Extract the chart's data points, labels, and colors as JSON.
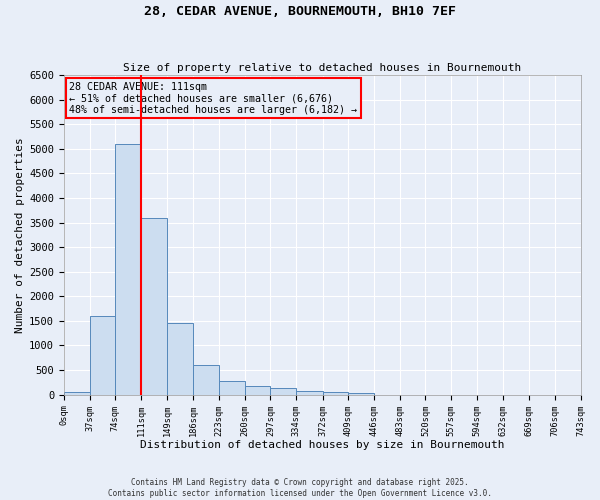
{
  "title_line1": "28, CEDAR AVENUE, BOURNEMOUTH, BH10 7EF",
  "title_line2": "Size of property relative to detached houses in Bournemouth",
  "xlabel": "Distribution of detached houses by size in Bournemouth",
  "ylabel": "Number of detached properties",
  "property_size": 111,
  "annotation_title": "28 CEDAR AVENUE: 111sqm",
  "annotation_line2": "← 51% of detached houses are smaller (6,676)",
  "annotation_line3": "48% of semi-detached houses are larger (6,182) →",
  "footer_line1": "Contains HM Land Registry data © Crown copyright and database right 2025.",
  "footer_line2": "Contains public sector information licensed under the Open Government Licence v3.0.",
  "bar_color": "#ccddf0",
  "bar_edge_color": "#5588bb",
  "vline_color": "red",
  "background_color": "#e8eef8",
  "grid_color": "#ffffff",
  "ylim_max": 6500,
  "bin_edges": [
    0,
    37,
    74,
    111,
    149,
    186,
    223,
    260,
    297,
    334,
    372,
    409,
    446,
    483,
    520,
    557,
    594,
    632,
    669,
    706,
    743
  ],
  "bar_heights": [
    50,
    1600,
    5100,
    3600,
    1450,
    600,
    280,
    175,
    130,
    80,
    50,
    30,
    0,
    0,
    0,
    0,
    0,
    0,
    0,
    0
  ],
  "yticks": [
    0,
    500,
    1000,
    1500,
    2000,
    2500,
    3000,
    3500,
    4000,
    4500,
    5000,
    5500,
    6000,
    6500
  ],
  "tick_labels": [
    "0sqm",
    "37sqm",
    "74sqm",
    "111sqm",
    "149sqm",
    "186sqm",
    "223sqm",
    "260sqm",
    "297sqm",
    "334sqm",
    "372sqm",
    "409sqm",
    "446sqm",
    "483sqm",
    "520sqm",
    "557sqm",
    "594sqm",
    "632sqm",
    "669sqm",
    "706sqm",
    "743sqm"
  ]
}
